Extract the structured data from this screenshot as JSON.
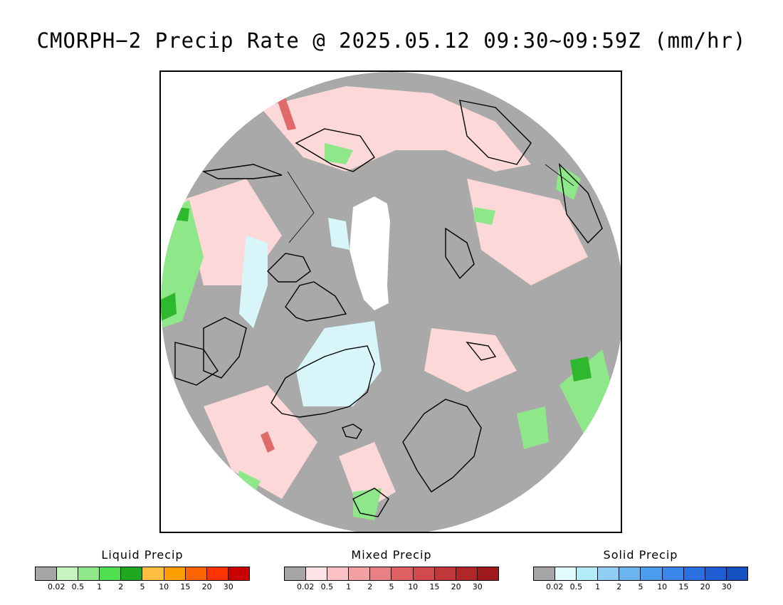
{
  "title": "CMORPH−2 Precip Rate @ 2025.05.12 09:30~09:59Z (mm/hr)",
  "map": {
    "projection": "north-polar-stereographic",
    "colors": {
      "no_precip": "#a9a9a9",
      "liquid_light": "#c6f5c0",
      "liquid_mid": "#8ee88a",
      "liquid_strong": "#2eb82e",
      "mixed_light": "#fcd8d8",
      "mixed_mid": "#e06a6a",
      "solid_light": "#d8f6fa",
      "polar_gap": "#ffffff",
      "coastline": "#000000"
    }
  },
  "legends": [
    {
      "title": "Liquid Precip",
      "colors": [
        "#a6a6a6",
        "#c6f5c0",
        "#8ee88a",
        "#4fe04f",
        "#21a821",
        "#fdbf3f",
        "#ff9e00",
        "#ff6600",
        "#ff3300",
        "#c80000"
      ],
      "ticks": [
        "0.02",
        "0.5",
        "1",
        "2",
        "5",
        "10",
        "15",
        "20",
        "30"
      ]
    },
    {
      "title": "Mixed Precip",
      "colors": [
        "#a6a6a6",
        "#fde3e6",
        "#fcc2c5",
        "#f2a0a3",
        "#e98083",
        "#dd6163",
        "#d24a4c",
        "#c23739",
        "#b12628",
        "#a01a1c"
      ],
      "ticks": [
        "0.02",
        "0.5",
        "1",
        "2",
        "5",
        "10",
        "15",
        "20",
        "30"
      ]
    },
    {
      "title": "Solid Precip",
      "colors": [
        "#a6a6a6",
        "#e2fbfe",
        "#b2ecf6",
        "#8fcdf5",
        "#6cb4f0",
        "#4c9ded",
        "#3a86ea",
        "#2a70e0",
        "#1f5dd2",
        "#1550c0"
      ],
      "ticks": [
        "0.02",
        "0.5",
        "1",
        "2",
        "5",
        "10",
        "15",
        "20",
        "30"
      ]
    }
  ]
}
